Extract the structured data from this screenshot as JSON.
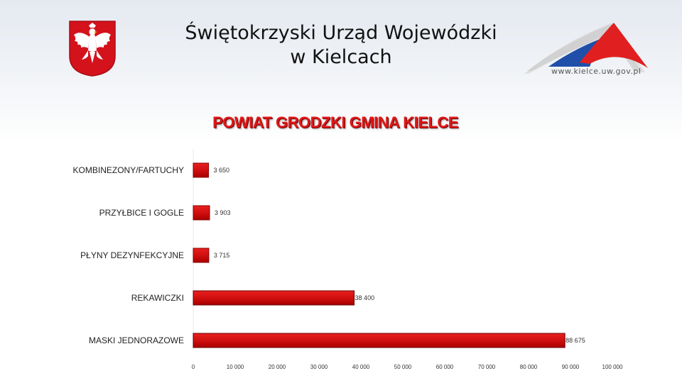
{
  "header": {
    "title_line1": "Świętokrzyski Urząd Wojewódzki",
    "title_line2": "w Kielcach",
    "logo_url": "www.kielce.uw.gov.pl"
  },
  "icons": {
    "emblem": "polish-eagle-emblem",
    "logo": "triangle-logo"
  },
  "colors": {
    "bar": "#e01010",
    "bar_dark": "#b80000",
    "title": "#e01818",
    "emblem_red": "#d4121c"
  },
  "chart_data": {
    "type": "bar",
    "orientation": "horizontal",
    "title": "POWIAT GRODZKI GMINA KIELCE",
    "categories": [
      "KOMBINEZONY/FARTUCHY",
      "PRZYŁBICE I GOGLE",
      "PŁYNY DEZYNFEKCYJNE",
      "REKAWICZKI",
      "MASKI JEDNORAZOWE"
    ],
    "values": [
      3650,
      3903,
      3715,
      38400,
      88675
    ],
    "value_labels": [
      "3 650",
      "3 903",
      "3 715",
      "38 400",
      "88 675"
    ],
    "xlim": [
      0,
      100000
    ],
    "xticks": [
      0,
      10000,
      20000,
      30000,
      40000,
      50000,
      60000,
      70000,
      80000,
      90000,
      100000
    ],
    "xtick_labels": [
      "0",
      "10 000",
      "20 000",
      "30 000",
      "40 000",
      "50 000",
      "60 000",
      "70 000",
      "80 000",
      "90 000",
      "100 000"
    ],
    "grid": false,
    "legend": "none"
  }
}
